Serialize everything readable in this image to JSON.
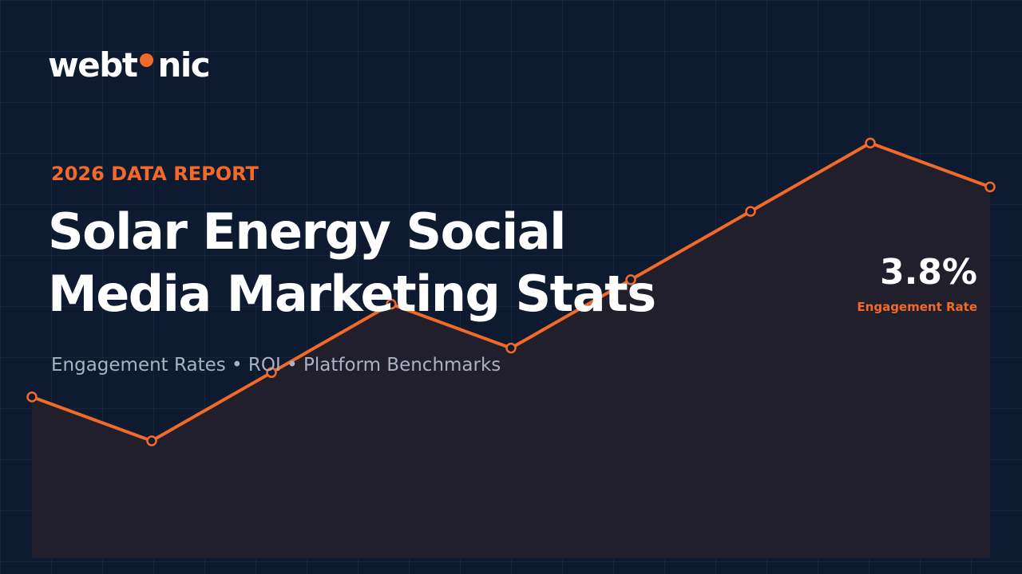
{
  "brand": {
    "logo_left": "webt",
    "logo_right": "nic",
    "accent_color": "#f26a2a"
  },
  "hero": {
    "eyebrow": "2026 DATA REPORT",
    "title_line1": "Solar Energy Social",
    "title_line2": "Media Marketing Stats",
    "subtitle": "Engagement Rates • ROI • Platform Benchmarks"
  },
  "highlight": {
    "value": "3.8%",
    "label": "Engagement Rate"
  },
  "chart_data": {
    "type": "area",
    "title": "",
    "xlabel": "",
    "ylabel": "",
    "ylim": [
      0,
      5
    ],
    "grid": true,
    "x": [
      1,
      2,
      3,
      4,
      5,
      6,
      7,
      8,
      9
    ],
    "values": [
      1.65,
      1.2,
      1.9,
      2.6,
      2.15,
      2.85,
      3.55,
      4.25,
      3.8
    ],
    "line_color": "#f26a2a",
    "fill_color": "#231f2d"
  }
}
